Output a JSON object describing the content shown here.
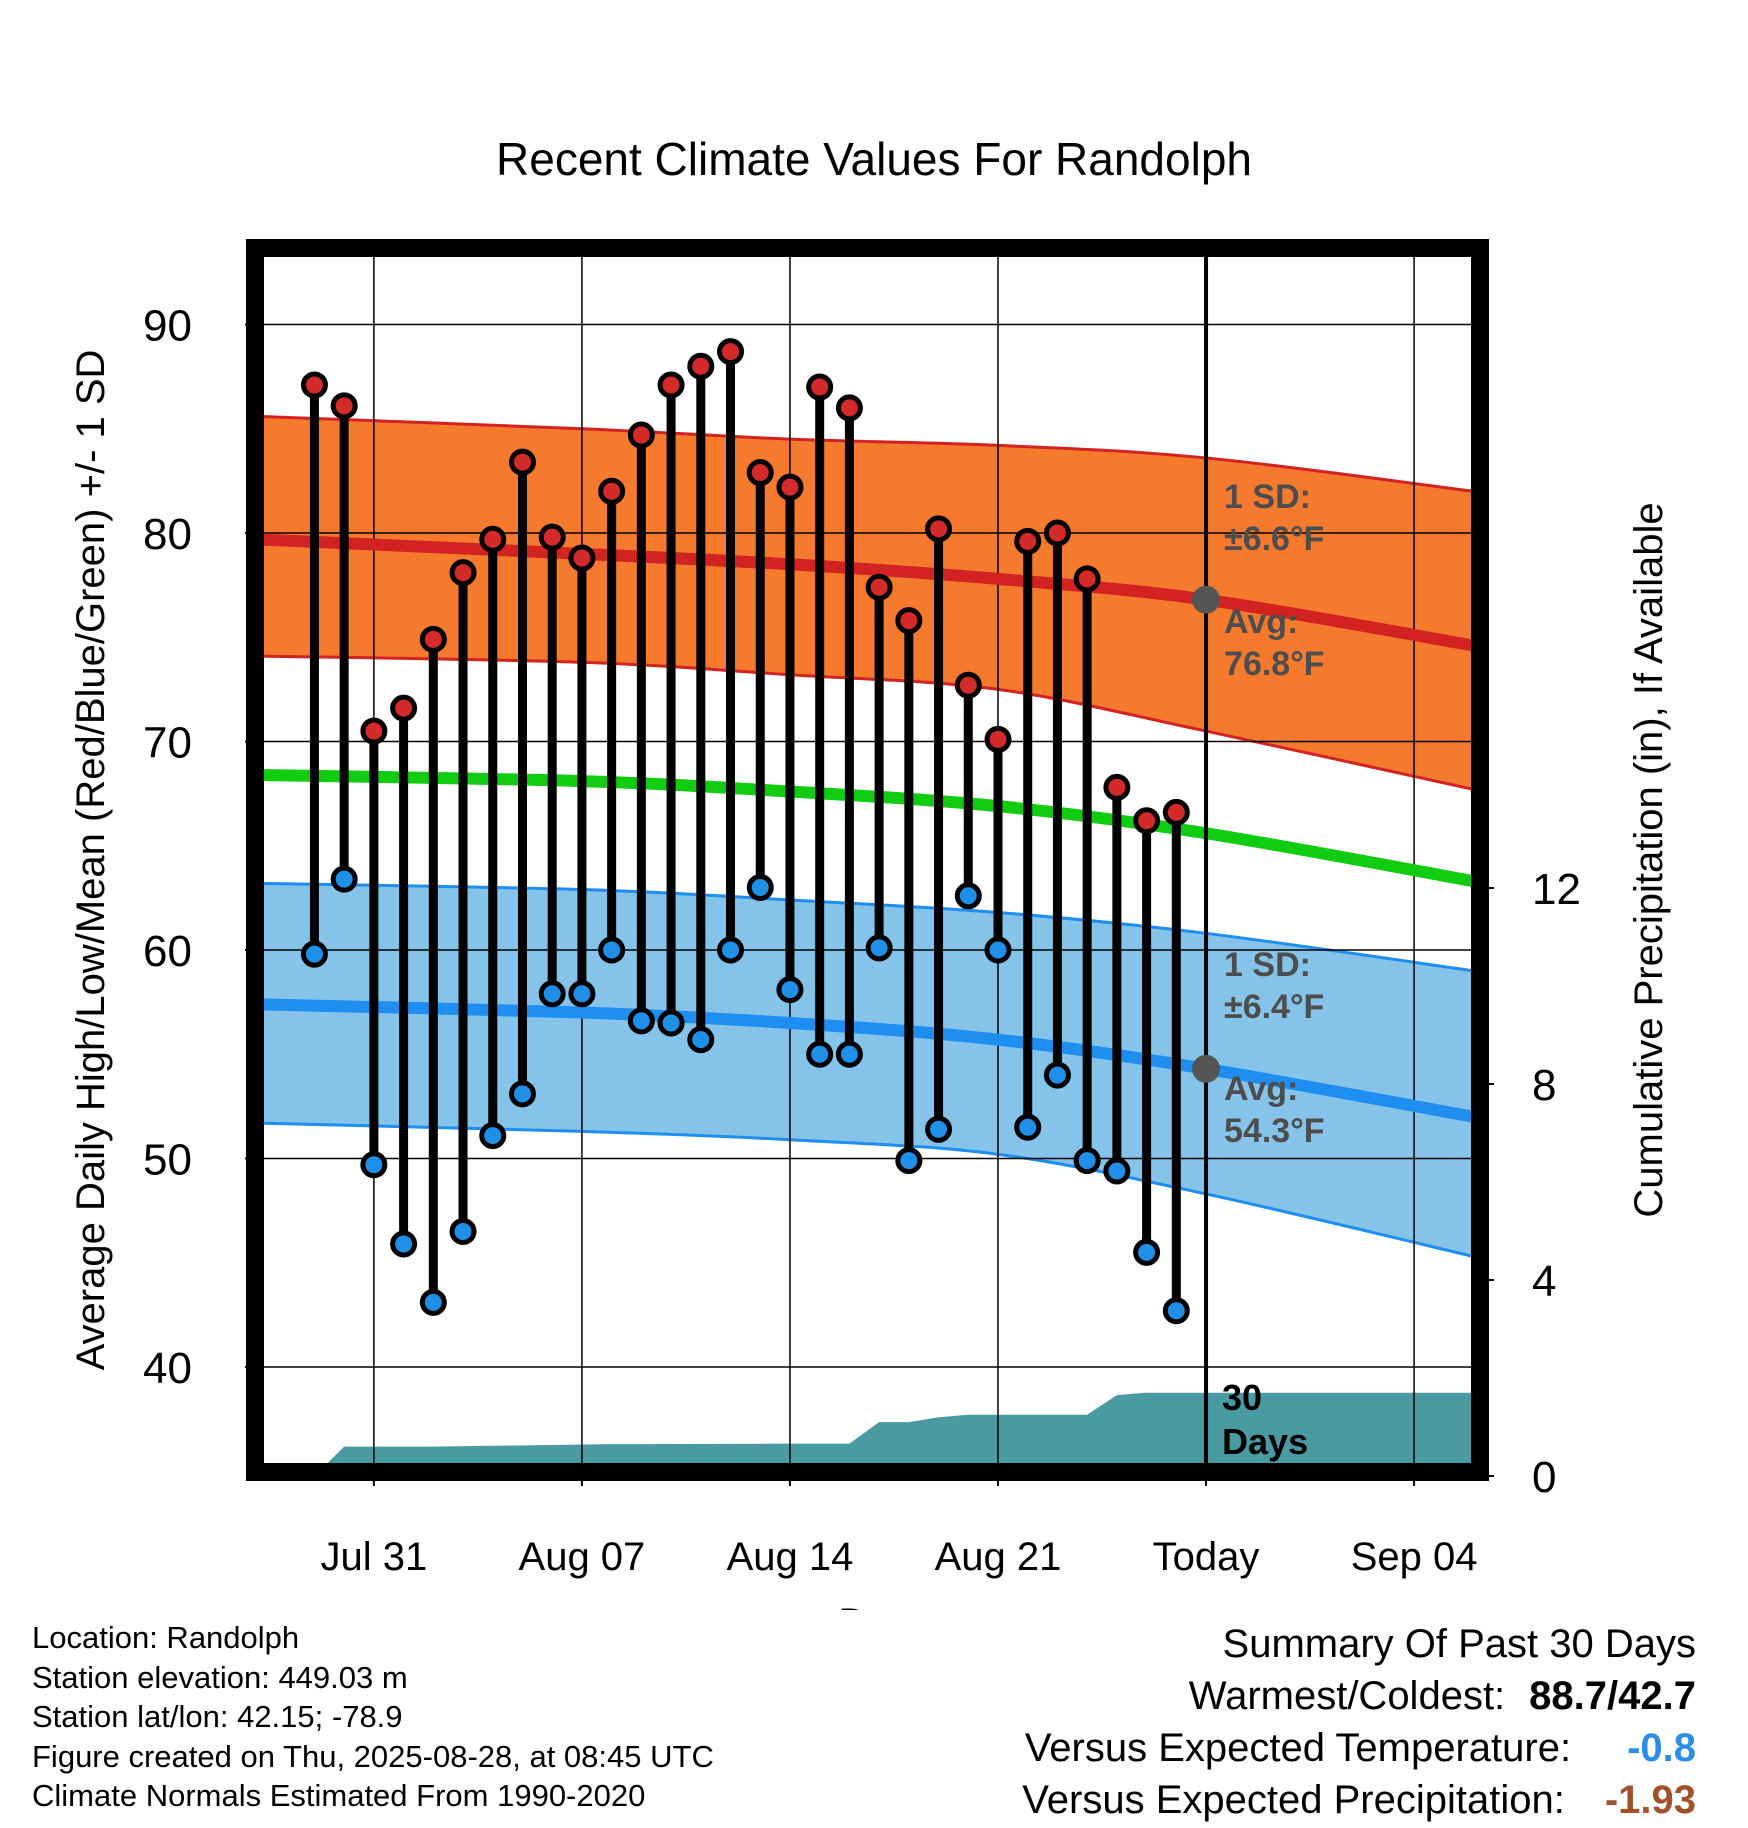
{
  "chart_data": {
    "type": "line",
    "title": "Recent Climate Values For Randolph",
    "xlabel": "Day",
    "ylabel": "Average Daily High/Low/Mean (Red/Blue/Green) +/- 1 SD",
    "y2label": "Cumulative Precipitation (in), If Available",
    "ylim": [
      35,
      94
    ],
    "y2lim": [
      0,
      24
    ],
    "xlim": [
      "2025-07-27",
      "2025-09-06"
    ],
    "grid": true,
    "x_ticks": [
      {
        "date": "2025-07-31",
        "label": "Jul 31"
      },
      {
        "date": "2025-08-07",
        "label": "Aug 07"
      },
      {
        "date": "2025-08-14",
        "label": "Aug 14"
      },
      {
        "date": "2025-08-21",
        "label": "Aug 21"
      },
      {
        "date": "2025-08-28",
        "label": "Today"
      },
      {
        "date": "2025-09-04",
        "label": "Sep 04"
      }
    ],
    "y_ticks": [
      40,
      50,
      60,
      70,
      80,
      90
    ],
    "y2_ticks": [
      0,
      4,
      8,
      12
    ],
    "today": "2025-08-28",
    "normals": {
      "x": [
        "2025-07-27",
        "2025-08-07",
        "2025-08-14",
        "2025-08-21",
        "2025-08-28",
        "2025-09-06"
      ],
      "high_mean": [
        79.7,
        79.0,
        78.5,
        77.8,
        76.8,
        74.6
      ],
      "high_upper": [
        85.6,
        85.0,
        84.5,
        84.2,
        83.6,
        82.0
      ],
      "high_lower": [
        74.1,
        73.8,
        73.2,
        72.5,
        70.5,
        67.7
      ],
      "mean": [
        68.4,
        68.1,
        67.6,
        66.9,
        65.6,
        63.3
      ],
      "low_mean": [
        57.4,
        57.0,
        56.5,
        55.7,
        54.3,
        52.0
      ],
      "low_upper": [
        63.2,
        62.9,
        62.4,
        61.8,
        60.8,
        59.0
      ],
      "low_lower": [
        51.7,
        51.3,
        50.9,
        50.2,
        48.3,
        45.3
      ]
    },
    "series": [
      {
        "name": "High",
        "color": "#d42a2a",
        "x": [
          "2025-07-29",
          "2025-07-30",
          "2025-07-31",
          "2025-08-01",
          "2025-08-02",
          "2025-08-03",
          "2025-08-04",
          "2025-08-05",
          "2025-08-06",
          "2025-08-07",
          "2025-08-08",
          "2025-08-09",
          "2025-08-10",
          "2025-08-11",
          "2025-08-12",
          "2025-08-13",
          "2025-08-14",
          "2025-08-15",
          "2025-08-16",
          "2025-08-17",
          "2025-08-18",
          "2025-08-19",
          "2025-08-20",
          "2025-08-21",
          "2025-08-22",
          "2025-08-23",
          "2025-08-24",
          "2025-08-25",
          "2025-08-26",
          "2025-08-27"
        ],
        "values": [
          87.1,
          86.1,
          70.5,
          71.6,
          74.9,
          78.1,
          79.7,
          83.4,
          79.8,
          78.8,
          82.0,
          84.7,
          87.1,
          88.0,
          88.7,
          82.9,
          82.2,
          87.0,
          86.0,
          77.4,
          75.8,
          80.2,
          72.7,
          70.1,
          79.6,
          80.0,
          77.8,
          67.8,
          66.2,
          66.6
        ]
      },
      {
        "name": "Low",
        "color": "#1f8fe8",
        "x": [
          "2025-07-29",
          "2025-07-30",
          "2025-07-31",
          "2025-08-01",
          "2025-08-02",
          "2025-08-03",
          "2025-08-04",
          "2025-08-05",
          "2025-08-06",
          "2025-08-07",
          "2025-08-08",
          "2025-08-09",
          "2025-08-10",
          "2025-08-11",
          "2025-08-12",
          "2025-08-13",
          "2025-08-14",
          "2025-08-15",
          "2025-08-16",
          "2025-08-17",
          "2025-08-18",
          "2025-08-19",
          "2025-08-20",
          "2025-08-21",
          "2025-08-22",
          "2025-08-23",
          "2025-08-24",
          "2025-08-25",
          "2025-08-26",
          "2025-08-27"
        ],
        "values": [
          59.8,
          63.4,
          49.7,
          45.9,
          43.1,
          46.5,
          51.1,
          53.1,
          57.9,
          57.9,
          60.0,
          56.6,
          56.5,
          55.7,
          60.0,
          63.0,
          58.1,
          55.0,
          55.0,
          60.1,
          49.9,
          51.4,
          62.6,
          60.0,
          51.5,
          54.0,
          49.9,
          49.4,
          45.5,
          42.7
        ]
      }
    ],
    "precip": {
      "x": [
        "2025-07-27",
        "2025-07-29",
        "2025-07-30",
        "2025-08-02",
        "2025-08-08",
        "2025-08-14",
        "2025-08-16",
        "2025-08-17",
        "2025-08-18",
        "2025-08-19",
        "2025-08-20",
        "2025-08-23",
        "2025-08-24",
        "2025-08-25",
        "2025-08-26",
        "2025-08-28",
        "2025-09-06"
      ],
      "values": [
        0,
        0,
        0.6,
        0.6,
        0.65,
        0.66,
        0.66,
        1.1,
        1.1,
        1.2,
        1.25,
        1.25,
        1.25,
        1.65,
        1.7,
        1.7,
        1.7
      ]
    },
    "annotations": [
      {
        "label": "1 SD:",
        "value": "±6.6°F",
        "series": "High"
      },
      {
        "label": "Avg:",
        "value": "76.8°F",
        "series": "High"
      },
      {
        "label": "1 SD:",
        "value": "±6.4°F",
        "series": "Low"
      },
      {
        "label": "Avg:",
        "value": "54.3°F",
        "series": "Low"
      },
      {
        "label": "30",
        "value": "Days",
        "series": "Precipitation"
      }
    ]
  },
  "colors": {
    "high_band": "#f57a2e",
    "high_line": "#d32222",
    "mean_line": "#11cc11",
    "low_band": "#85c3e8",
    "low_line": "#1e8ef0",
    "precip_fill": "#4a9aa2",
    "annotation_text": "#4d4d4d",
    "today_dot": "#555555"
  },
  "footer": {
    "location": "Location: Randolph",
    "elevation": "Station elevation: 449.03 m",
    "latlon": "Station lat/lon: 42.15; -78.9",
    "created": "Figure created on Thu, 2025-08-28, at 08:45 UTC",
    "normals": "Climate Normals Estimated From 1990-2020"
  },
  "summary": {
    "heading": "Summary Of Past 30 Days",
    "warmest_label": "Warmest/Coldest:",
    "warmest_value": "88.7/42.7",
    "temp_label": "Versus Expected Temperature:",
    "temp_value": "-0.8",
    "temp_color": "#2b8de6",
    "precip_label": "Versus Expected Precipitation:",
    "precip_value": "-1.93",
    "precip_color": "#a0522d"
  }
}
